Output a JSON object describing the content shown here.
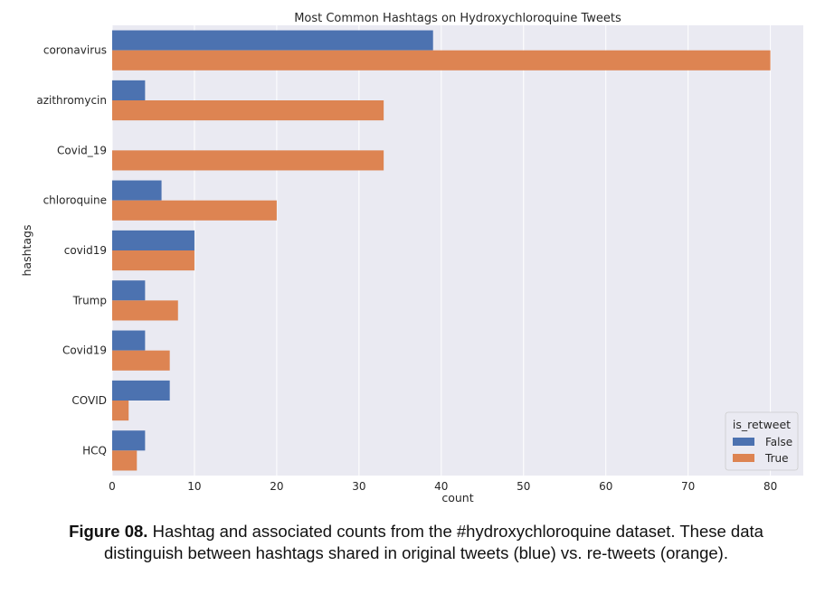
{
  "chart_data": {
    "type": "bar",
    "orientation": "horizontal",
    "title": "Most Common Hashtags on Hydroxychloroquine Tweets",
    "xlabel": "count",
    "ylabel": "hashtags",
    "categories": [
      "coronavirus",
      "azithromycin",
      "Covid_19",
      "chloroquine",
      "covid19",
      "Trump",
      "Covid19",
      "COVID",
      "HCQ"
    ],
    "series": [
      {
        "name": "False",
        "color": "#4c72b0",
        "values": [
          39,
          4,
          0,
          6,
          10,
          4,
          4,
          7,
          4
        ]
      },
      {
        "name": "True",
        "color": "#dd8452",
        "values": [
          80,
          33,
          33,
          20,
          10,
          8,
          7,
          2,
          3
        ]
      }
    ],
    "xlim": [
      0,
      84
    ],
    "xticks": [
      0,
      10,
      20,
      30,
      40,
      50,
      60,
      70,
      80
    ],
    "grid": true,
    "legend": {
      "title": "is_retweet",
      "position": "bottom-right"
    }
  },
  "caption": {
    "label": "Figure 08.",
    "text": " Hashtag and associated counts from the #hydroxychloroquine dataset. These data distinguish between hashtags shared in original tweets (blue) vs. re-tweets (orange)."
  }
}
